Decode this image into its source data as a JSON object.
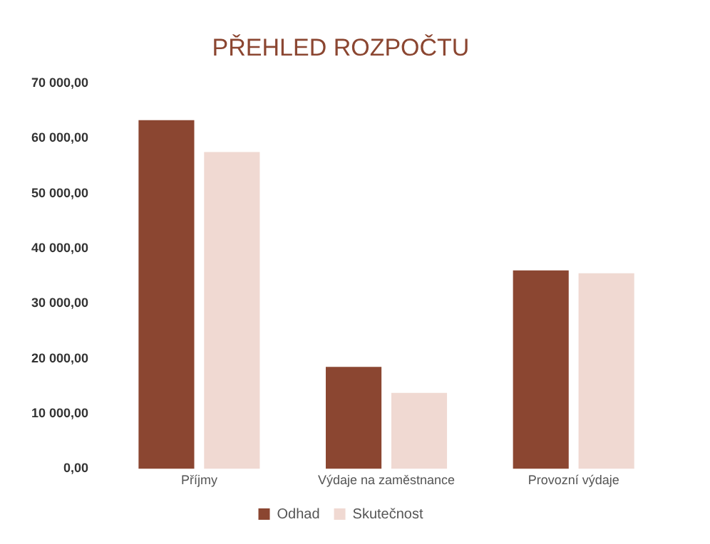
{
  "chart_data": {
    "type": "bar",
    "title": "PŘEHLED ROZPOČTU",
    "categories": [
      "Příjmy",
      "Výdaje na zaměstnance",
      "Provozní výdaje"
    ],
    "series": [
      {
        "name": "Odhad",
        "color": "#8b4631",
        "values": [
          63300,
          18500,
          36000
        ]
      },
      {
        "name": "Skutečnost",
        "color": "#f0d9d2",
        "values": [
          57500,
          13800,
          35500
        ]
      }
    ],
    "ylim": [
      0,
      70000
    ],
    "yticks": [
      {
        "value": 0,
        "label": "0,00"
      },
      {
        "value": 10000,
        "label": "10 000,00"
      },
      {
        "value": 20000,
        "label": "20 000,00"
      },
      {
        "value": 30000,
        "label": "30 000,00"
      },
      {
        "value": 40000,
        "label": "40 000,00"
      },
      {
        "value": 50000,
        "label": "50 000,00"
      },
      {
        "value": 60000,
        "label": "60 000,00"
      },
      {
        "value": 70000,
        "label": "70 000,00"
      }
    ],
    "grid": false,
    "legend": "bottom"
  }
}
